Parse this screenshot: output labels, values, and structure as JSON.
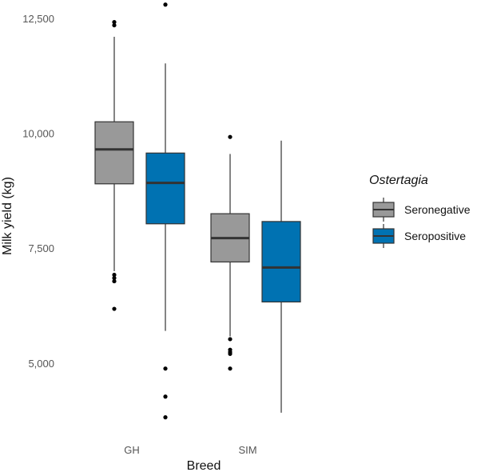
{
  "chart_data": {
    "type": "box",
    "xlabel": "Breed",
    "ylabel": "Milk yield (kg)",
    "ylim": [
      3500,
      12900
    ],
    "yticks": [
      5000,
      7500,
      10000,
      12500
    ],
    "ytick_labels": [
      "5,000",
      "7,500",
      "10,000",
      "12,500"
    ],
    "categories": [
      "GH",
      "SIM"
    ],
    "grid": false,
    "legend": {
      "title": "Ostertagia",
      "position": "right",
      "entries": [
        "Seronegative",
        "Seropositive"
      ]
    },
    "colors": {
      "Seronegative": "#999999",
      "Seropositive": "#0072B2",
      "median": "#333333",
      "whisker": "#333333",
      "outlier": "#000000"
    },
    "series": [
      {
        "name": "Seronegative",
        "boxes": [
          {
            "category": "GH",
            "whisker_low": 7000,
            "q1": 8900,
            "median": 9650,
            "q3": 10250,
            "whisker_high": 12100,
            "outliers": [
              12420,
              12350,
              6920,
              6850,
              6780,
              6180
            ]
          },
          {
            "category": "SIM",
            "whisker_low": 5580,
            "q1": 7200,
            "median": 7720,
            "q3": 8250,
            "whisker_high": 9550,
            "outliers": [
              9920,
              5520,
              5290,
              5240,
              5200,
              4880
            ]
          }
        ]
      },
      {
        "name": "Seropositive",
        "boxes": [
          {
            "category": "GH",
            "whisker_low": 5700,
            "q1": 8030,
            "median": 8920,
            "q3": 9570,
            "whisker_high": 11520,
            "outliers": [
              12800,
              4880,
              4270,
              3820
            ]
          },
          {
            "category": "SIM",
            "whisker_low": 3920,
            "q1": 6330,
            "median": 7080,
            "q3": 8080,
            "whisker_high": 9840,
            "outliers": []
          }
        ]
      }
    ]
  }
}
